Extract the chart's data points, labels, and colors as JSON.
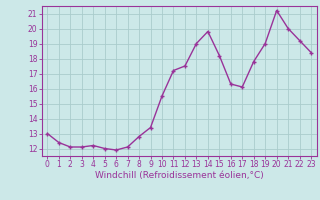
{
  "hours": [
    0,
    1,
    2,
    3,
    4,
    5,
    6,
    7,
    8,
    9,
    10,
    11,
    12,
    13,
    14,
    15,
    16,
    17,
    18,
    19,
    20,
    21,
    22,
    23
  ],
  "values": [
    13.0,
    12.4,
    12.1,
    12.1,
    12.2,
    12.0,
    11.9,
    12.1,
    12.8,
    13.4,
    15.5,
    17.2,
    17.5,
    19.0,
    19.8,
    18.2,
    16.3,
    16.1,
    17.8,
    19.0,
    21.2,
    20.0,
    19.2,
    18.4
  ],
  "line_color": "#993399",
  "marker": "+",
  "marker_size": 3,
  "linewidth": 1.0,
  "bg_color": "#cce8e8",
  "grid_color": "#aacccc",
  "xlabel": "Windchill (Refroidissement éolien,°C)",
  "ylim": [
    11.5,
    21.5
  ],
  "xlim": [
    -0.5,
    23.5
  ],
  "yticks": [
    12,
    13,
    14,
    15,
    16,
    17,
    18,
    19,
    20,
    21
  ],
  "xticks": [
    0,
    1,
    2,
    3,
    4,
    5,
    6,
    7,
    8,
    9,
    10,
    11,
    12,
    13,
    14,
    15,
    16,
    17,
    18,
    19,
    20,
    21,
    22,
    23
  ],
  "tick_labelsize": 5.5,
  "xlabel_fontsize": 6.5,
  "axis_color": "#993399",
  "spine_color": "#993399"
}
